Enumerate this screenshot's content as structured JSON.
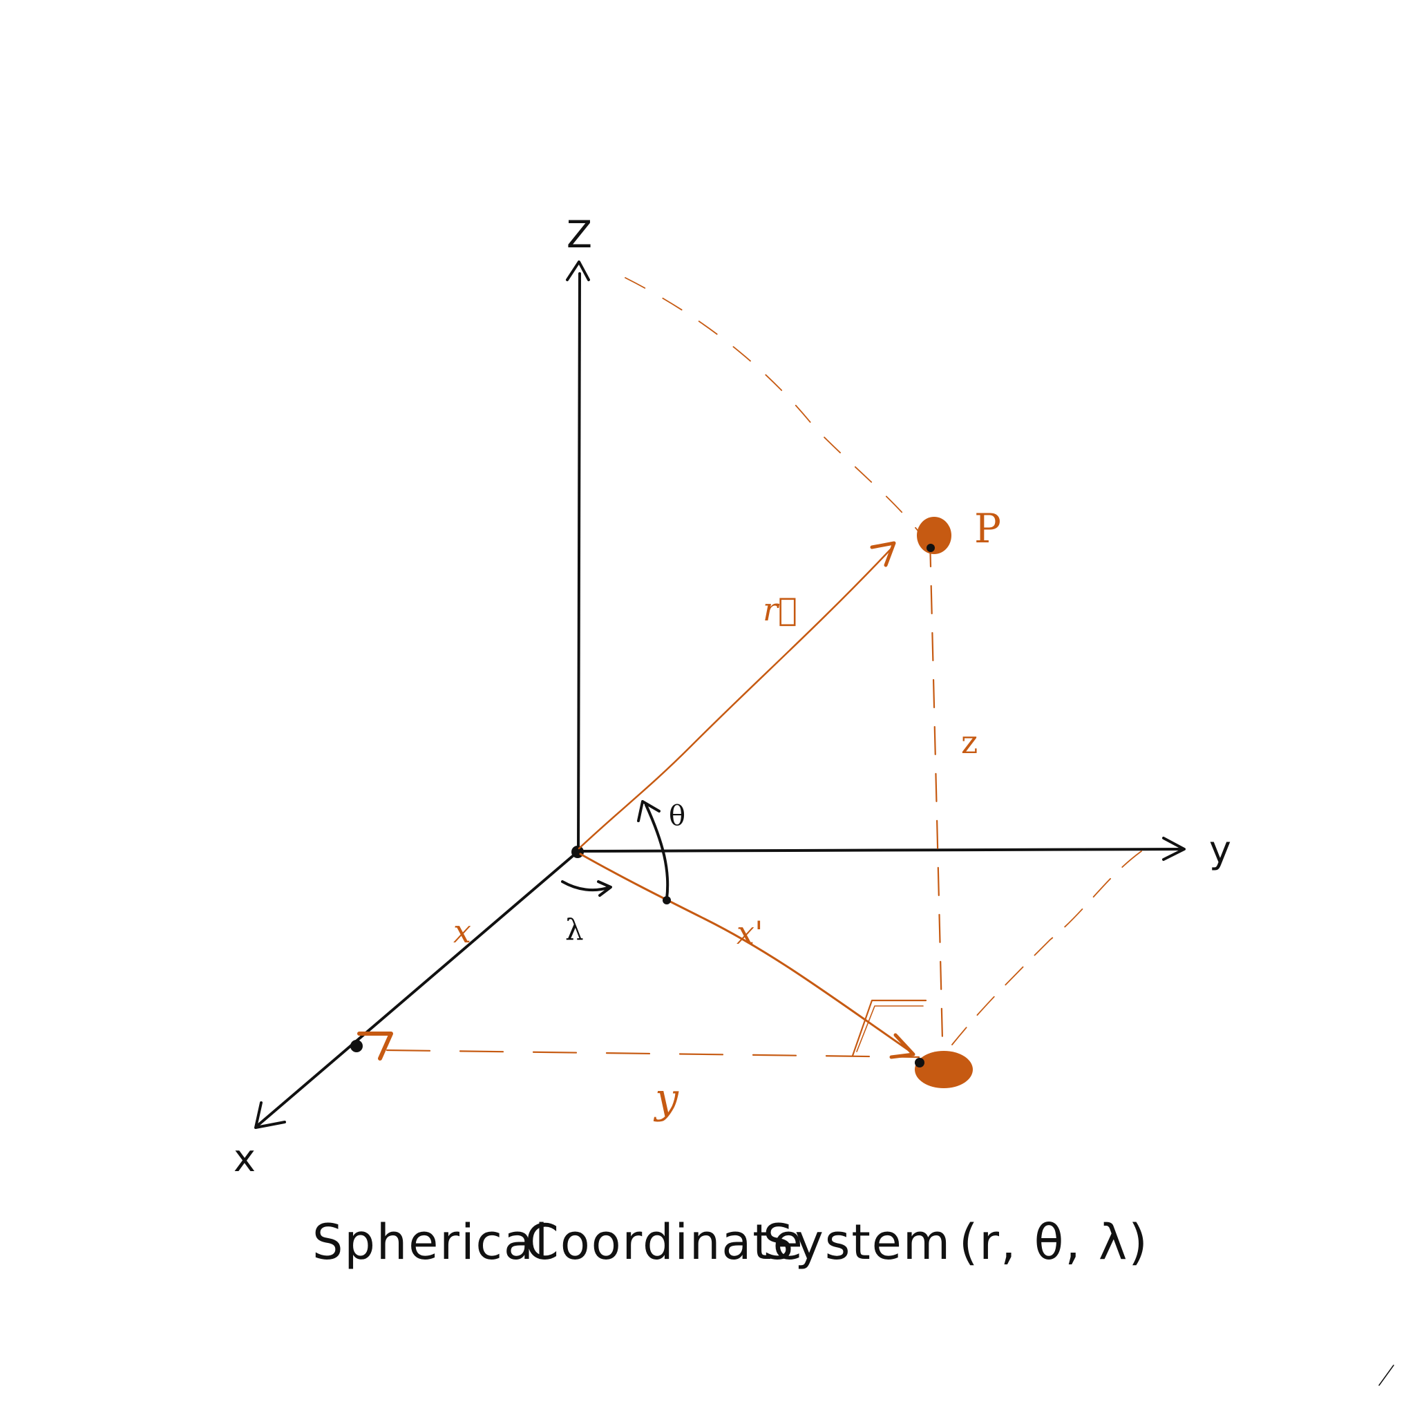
{
  "colors": {
    "ink": "#111111",
    "accent": "#c65a12",
    "accent_light": "#d98742",
    "background": "#ffffff"
  },
  "axes": {
    "z_label": "Z",
    "y_label": "y",
    "x_label": "x"
  },
  "point": {
    "label": "P"
  },
  "labels": {
    "r_vector": "r⃗",
    "z_height": "z",
    "theta": "θ",
    "lambda": "λ",
    "x_length": "x",
    "x_prime": "x'",
    "y_length": "y"
  },
  "caption": {
    "word1": "Spherical",
    "word2": "Coordinate",
    "word3": "System",
    "tuple": "(r, θ, λ)"
  }
}
